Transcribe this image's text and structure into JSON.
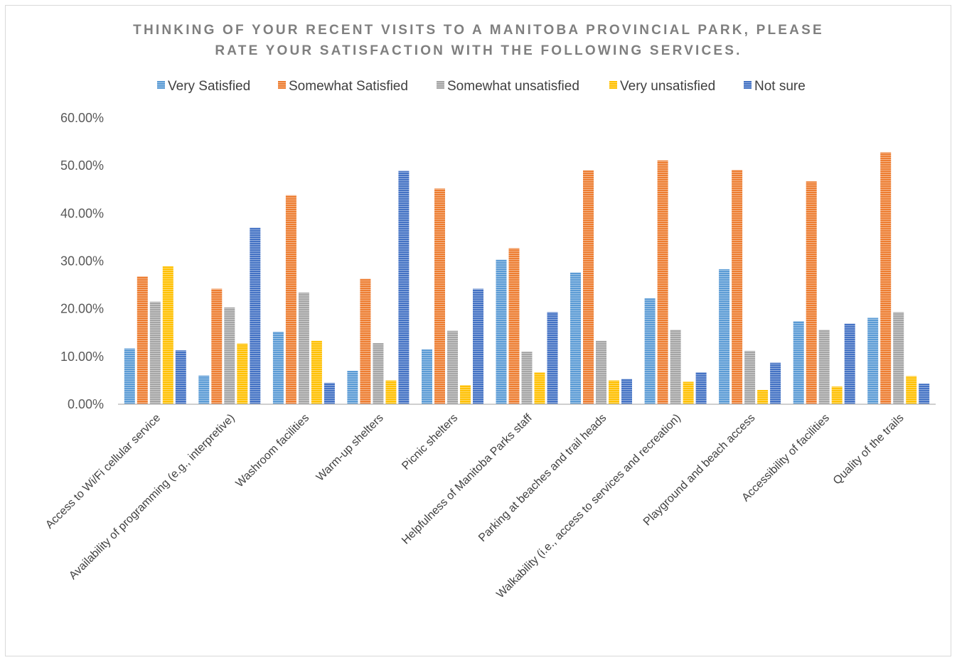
{
  "chart_data": {
    "type": "bar",
    "title_lines": [
      "THINKING OF YOUR RECENT VISITS TO A MANITOBA PROVINCIAL PARK, PLEASE",
      "RATE YOUR SATISFACTION WITH THE FOLLOWING SERVICES."
    ],
    "categories": [
      "Access to Wi/Fi cellular service",
      "Availability of programming (e.g., interpretive)",
      "Washroom facilities",
      "Warm-up shelters",
      "Picnic shelters",
      "Helpfulness of Manitoba Parks staff",
      "Parking at beaches and trail heads",
      "Walkability (i.e., access to services and recreation)",
      "Playground and beach access",
      "Accessibility of facilities",
      "Quality of the trails"
    ],
    "series": [
      {
        "name": "Very Satisfied",
        "color": "#5b9bd5",
        "values": [
          11.7,
          6.0,
          15.2,
          7.0,
          11.5,
          30.3,
          27.6,
          22.2,
          28.3,
          17.4,
          18.1
        ]
      },
      {
        "name": "Somewhat Satisfied",
        "color": "#ed7d31",
        "values": [
          26.8,
          24.2,
          43.8,
          26.3,
          45.2,
          32.7,
          49.0,
          51.1,
          49.1,
          46.7,
          52.8
        ]
      },
      {
        "name": "Somewhat unsatisfied",
        "color": "#a5a5a5",
        "values": [
          21.5,
          20.3,
          23.4,
          12.8,
          15.4,
          11.0,
          13.3,
          15.6,
          11.2,
          15.6,
          19.3
        ]
      },
      {
        "name": "Very unsatisfied",
        "color": "#ffc000",
        "values": [
          28.9,
          12.7,
          13.3,
          5.0,
          4.0,
          6.7,
          5.0,
          4.7,
          3.0,
          3.7,
          5.9
        ]
      },
      {
        "name": "Not sure",
        "color": "#4472c4",
        "values": [
          11.3,
          37.0,
          4.5,
          48.9,
          24.2,
          19.3,
          5.3,
          6.7,
          8.7,
          16.9,
          4.3
        ]
      }
    ],
    "y_ticks": [
      "0.00%",
      "10.00%",
      "20.00%",
      "30.00%",
      "40.00%",
      "50.00%",
      "60.00%"
    ],
    "ylim": [
      0,
      60
    ],
    "legend_position": "top",
    "grid": false
  }
}
